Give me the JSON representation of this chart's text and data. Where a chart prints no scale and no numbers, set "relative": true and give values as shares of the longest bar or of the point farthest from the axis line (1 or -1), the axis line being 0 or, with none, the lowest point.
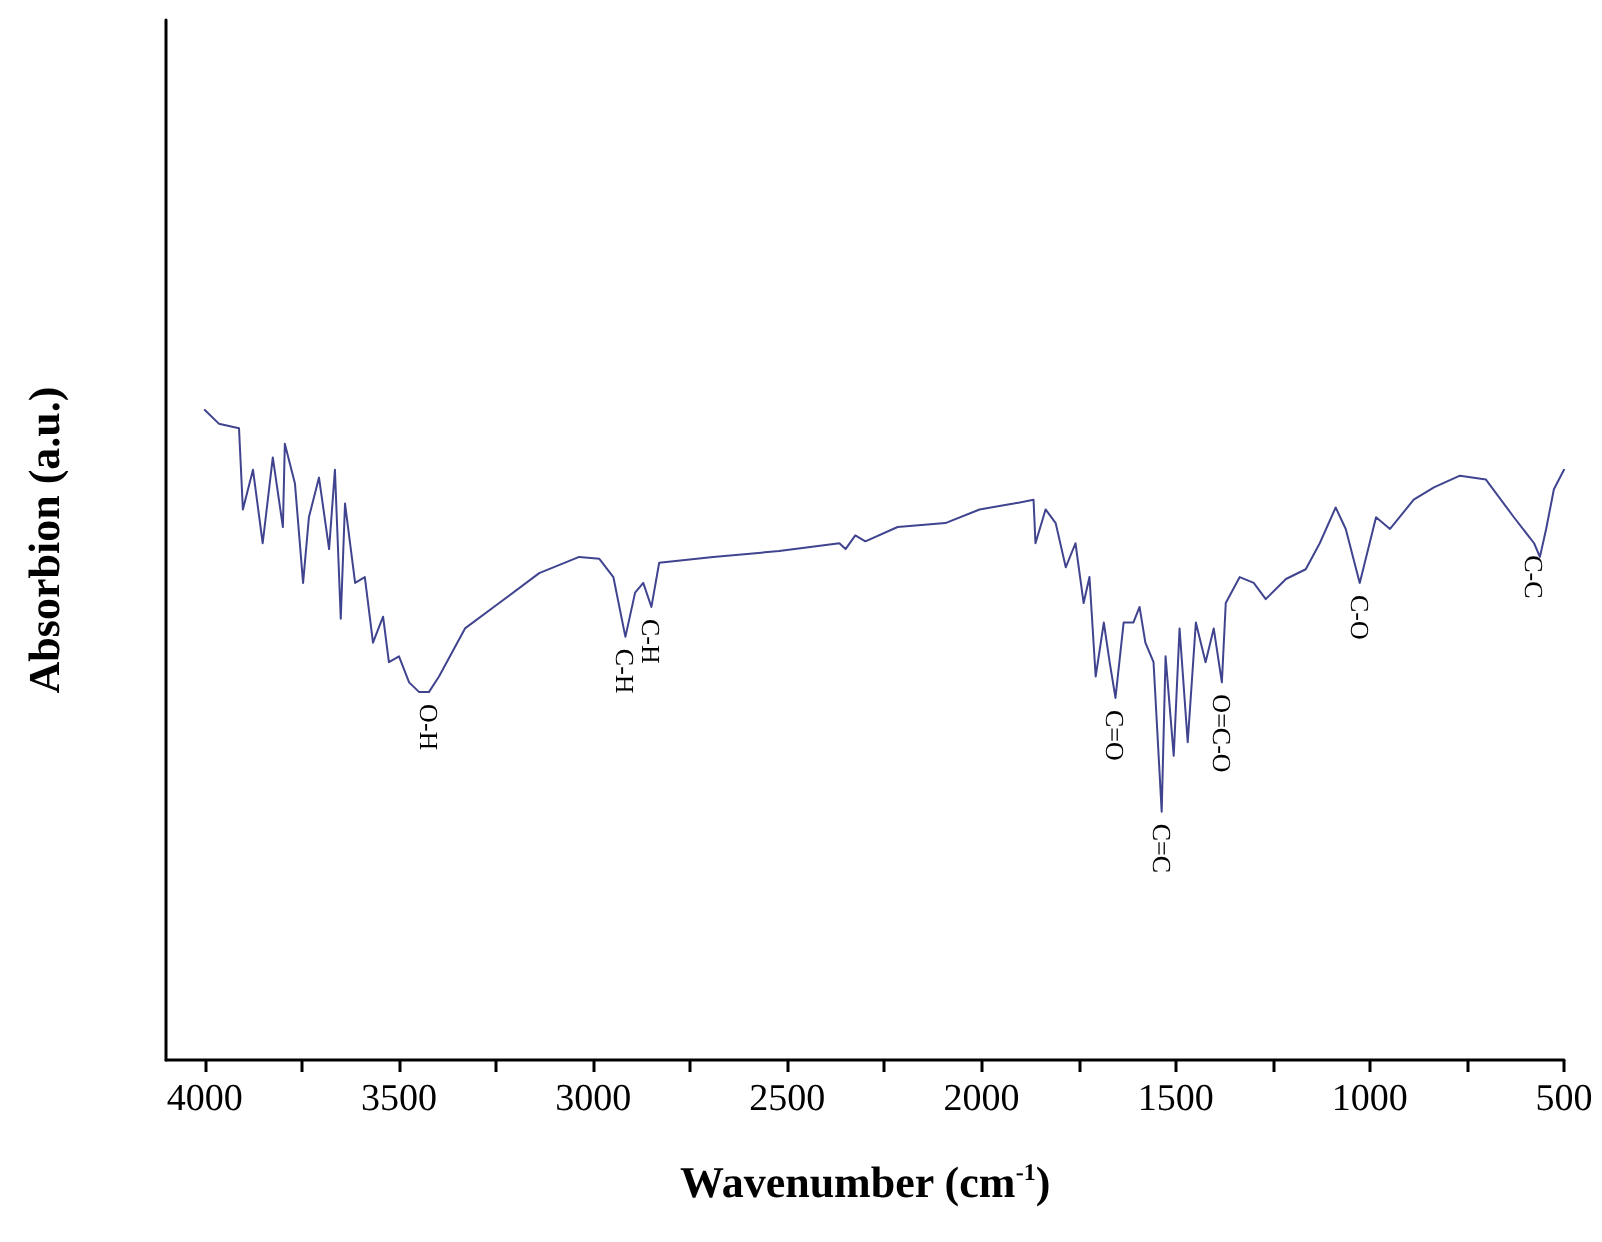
{
  "chart_data": {
    "type": "line",
    "xlabel": "Wavenumber (cm$^{-1}$)",
    "ylabel": "Absorbion (a.u.)",
    "relative": true,
    "xlim": [
      4100,
      500
    ],
    "xticks": [
      4000,
      {
        "value": 3750,
        "label": null
      },
      3500,
      {
        "value": 3250,
        "label": null
      },
      3000,
      {
        "value": 2750,
        "label": null
      },
      2500,
      {
        "value": 2250,
        "label": null
      },
      2000,
      {
        "value": 1750,
        "label": null
      },
      1500,
      {
        "value": 1250,
        "label": null
      },
      1000,
      {
        "value": 750,
        "label": null
      },
      500
    ],
    "grid": false,
    "marker": "none",
    "line_style": "solid",
    "series": [
      {
        "color": "#40448f",
        "x": [
          4000,
          3964,
          3912,
          3902,
          3876,
          3851,
          3825,
          3799,
          3794,
          3768,
          3747,
          3732,
          3706,
          3680,
          3665,
          3650,
          3639,
          3613,
          3588,
          3567,
          3541,
          3526,
          3500,
          3474,
          3448,
          3423,
          3397,
          3330,
          3242,
          3139,
          3036,
          2984,
          2948,
          2917,
          2892,
          2871,
          2850,
          2830,
          2691,
          2521,
          2366,
          2350,
          2325,
          2299,
          2216,
          2093,
          2005,
          1917,
          1866,
          1861,
          1835,
          1809,
          1783,
          1758,
          1737,
          1722,
          1706,
          1685,
          1670,
          1655,
          1634,
          1609,
          1593,
          1578,
          1557,
          1536,
          1526,
          1505,
          1490,
          1469,
          1448,
          1423,
          1402,
          1381,
          1371,
          1335,
          1299,
          1268,
          1216,
          1165,
          1129,
          1088,
          1062,
          1026,
          984,
          948,
          887,
          835,
          768,
          701,
          629,
          577,
          562,
          546,
          526,
          500
        ],
        "values": [
          1,
          0.979,
          0.972,
          0.847,
          0.908,
          0.795,
          0.927,
          0.82,
          0.948,
          0.887,
          0.734,
          0.835,
          0.896,
          0.786,
          0.908,
          0.679,
          0.856,
          0.734,
          0.743,
          0.642,
          0.682,
          0.612,
          0.621,
          0.581,
          0.566,
          0.566,
          0.59,
          0.664,
          0.703,
          0.749,
          0.774,
          0.771,
          0.743,
          0.651,
          0.719,
          0.734,
          0.697,
          0.765,
          0.774,
          0.783,
          0.795,
          0.786,
          0.807,
          0.798,
          0.82,
          0.826,
          0.847,
          0.856,
          0.862,
          0.795,
          0.847,
          0.826,
          0.758,
          0.795,
          0.703,
          0.743,
          0.59,
          0.673,
          0.612,
          0.557,
          0.673,
          0.673,
          0.697,
          0.642,
          0.612,
          0.382,
          0.621,
          0.468,
          0.664,
          0.489,
          0.673,
          0.612,
          0.664,
          0.581,
          0.703,
          0.743,
          0.734,
          0.709,
          0.74,
          0.755,
          0.795,
          0.85,
          0.817,
          0.734,
          0.835,
          0.817,
          0.862,
          0.881,
          0.899,
          0.893,
          0.835,
          0.795,
          0.774,
          0.817,
          0.878,
          0.908
        ]
      }
    ],
    "annotations": [
      {
        "text": "O-H",
        "x": 3423,
        "y": 0.566
      },
      {
        "text": "C-H",
        "x": 2917,
        "y": 0.651
      },
      {
        "text": "C-H",
        "x": 2850,
        "y": 0.697
      },
      {
        "text": "C=O",
        "x": 1655,
        "y": 0.557
      },
      {
        "text": "C=C",
        "x": 1536,
        "y": 0.382
      },
      {
        "text": "O=C-O",
        "x": 1381,
        "y": 0.581
      },
      {
        "text": "C-O",
        "x": 1026,
        "y": 0.734
      },
      {
        "text": "C-C",
        "x": 577,
        "y": 0.795
      }
    ]
  }
}
